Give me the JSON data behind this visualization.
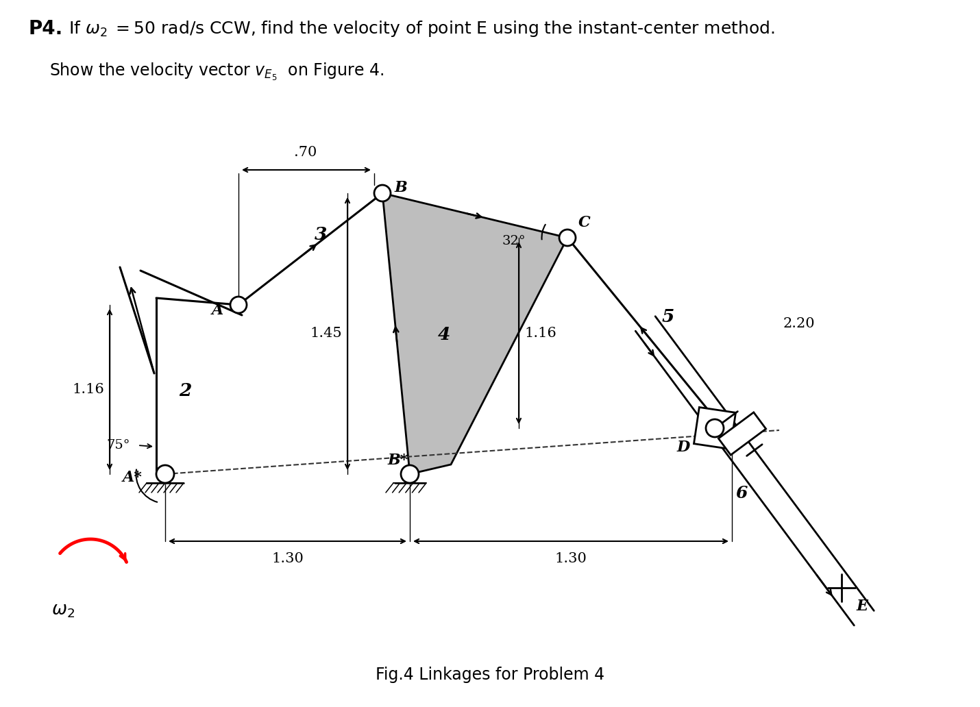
{
  "bg_color": "#ffffff",
  "caption": "Fig.4 Linkages for Problem 4",
  "dim_070": ".70",
  "dim_116_left": "1.16",
  "dim_116_right": "1.16",
  "dim_145": "1.45",
  "dim_220": "2.20",
  "dim_130_left": "1.30",
  "dim_130_right": "1.30",
  "angle_75": "75°",
  "angle_32": "32°",
  "link2": "2",
  "link3": "3",
  "link4": "4",
  "link5": "5",
  "link6": "6",
  "label_A": "A",
  "label_Astar": "A*",
  "label_B": "B",
  "label_Bstar": "B*",
  "label_C": "C",
  "label_D": "D",
  "label_E": "E",
  "omega2_label": "$\\omega_2$",
  "title_bold": "P4.",
  "title_rest": "If $\\omega_2\\,$ = 50 rad/s CCW, find the velocity of point E using the instant-center method.",
  "subtitle": "Show the velocity vector $v_{E_5}$  on Figure 4."
}
